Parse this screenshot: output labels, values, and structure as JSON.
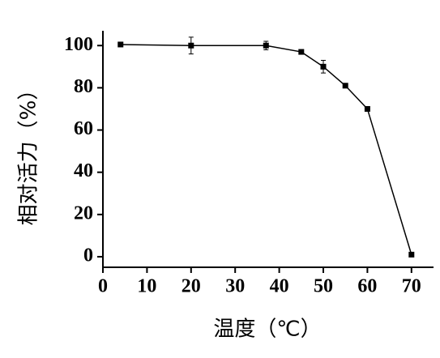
{
  "chart_data": {
    "type": "line",
    "x_label": "温度（℃）",
    "y_label": "相对活力（%）",
    "x": [
      4,
      20,
      37,
      45,
      50,
      55,
      60,
      70
    ],
    "series": [
      {
        "color": "#000000",
        "values": [
          100.5,
          100,
          100,
          97,
          90,
          81,
          70,
          1
        ],
        "errors": [
          0.5,
          4,
          2,
          0.5,
          3,
          0.5,
          1,
          0.5
        ]
      }
    ],
    "xlim": [
      0,
      75
    ],
    "xticks": [
      0,
      10,
      20,
      30,
      40,
      50,
      60,
      70
    ],
    "ylim": [
      -5,
      107
    ],
    "yticks": [
      0,
      20,
      40,
      60,
      80,
      100
    ]
  }
}
